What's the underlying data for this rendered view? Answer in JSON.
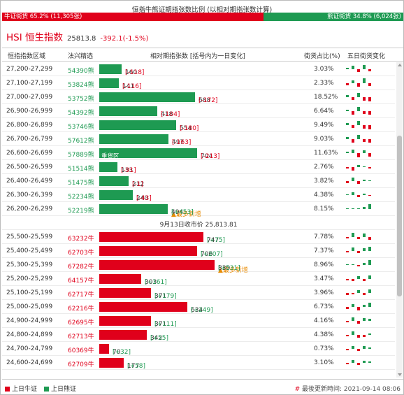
{
  "title": "恒指牛熊证期指张数比例 (以相对期指张数计算)",
  "ratio": {
    "bull_label": "牛证街货 65.2% (11,305张)",
    "bear_label": "熊证街货 34.8% (6,024张)",
    "bull_fraction": 0.652,
    "colors": {
      "bull": "#e0001b",
      "bear": "#1e9a52",
      "highlight": "#e88a00"
    }
  },
  "index": {
    "name": "HSI 恒生指数",
    "price": "25813.8",
    "change": "-392.1(-1.5%)"
  },
  "headers": {
    "range": "恒指指数区域",
    "code": "法兴精选",
    "contracts": "相对期指张数 [括号内为一日变化]",
    "pct": "街货占比(%)",
    "spark": "五日街货变化"
  },
  "bar_scale_max": 830,
  "rows": [
    {
      "type": "bear",
      "range": "27,200-27,299",
      "code": "54390熊",
      "value": 160,
      "value_text": "160",
      "change": "[-118]",
      "change_sign": "neg",
      "pct": "3.03%",
      "spark": [
        2,
        5,
        -4,
        6,
        -3
      ]
    },
    {
      "type": "bear",
      "range": "27,100-27,199",
      "code": "53824熊",
      "value": 141,
      "value_text": "141",
      "change": "[-116]",
      "change_sign": "neg",
      "pct": "2.33%",
      "spark": [
        -3,
        4,
        -5,
        7,
        -4
      ]
    },
    {
      "type": "bear",
      "range": "27,000-27,099",
      "code": "53752熊",
      "value": 688,
      "value_text": "688",
      "change": "[-172]",
      "change_sign": "neg",
      "pct": "18.52%",
      "spark": [
        3,
        -4,
        6,
        -5,
        -6
      ]
    },
    {
      "type": "bear",
      "range": "26,900-26,999",
      "code": "54392熊",
      "value": 418,
      "value_text": "418",
      "change": "[-104]",
      "change_sign": "neg",
      "pct": "6.64%",
      "spark": [
        2,
        -5,
        6,
        -4,
        -5
      ]
    },
    {
      "type": "bear",
      "range": "26,800-26,899",
      "code": "53746熊",
      "value": 554,
      "value_text": "554",
      "change": "[-180]",
      "change_sign": "neg",
      "pct": "9.49%",
      "spark": [
        3,
        -4,
        6,
        -5,
        -6
      ]
    },
    {
      "type": "bear",
      "range": "26,700-26,799",
      "code": "57612熊",
      "value": 497,
      "value_text": "497",
      "change": "[-163]",
      "change_sign": "neg",
      "pct": "9.03%",
      "spark": [
        3,
        -5,
        6,
        -4,
        -5
      ]
    },
    {
      "type": "bear",
      "range": "26,600-26,699",
      "code": "57889熊",
      "value": 704,
      "value_text": "704",
      "change": "[-213]",
      "change_sign": "neg",
      "pct": "11.63%",
      "bar_label": "重货区",
      "spark": [
        2,
        5,
        -6,
        4,
        -5
      ]
    },
    {
      "type": "bear",
      "range": "26,500-26,599",
      "code": "51514熊",
      "value": 133,
      "value_text": "133",
      "change": "[-91]",
      "change_sign": "neg",
      "pct": "2.76%",
      "spark": [
        -2,
        -5,
        3,
        1,
        -2
      ]
    },
    {
      "type": "bear",
      "range": "26,400-26,499",
      "code": "51475熊",
      "value": 212,
      "value_text": "212",
      "change": "[-1]",
      "change_sign": "neg",
      "pct": "3.82%",
      "spark": [
        -3,
        5,
        -4,
        2,
        0
      ]
    },
    {
      "type": "bear",
      "range": "26,300-26,399",
      "code": "52234熊",
      "value": 240,
      "value_text": "240",
      "change": "[-43]",
      "change_sign": "neg",
      "pct": "4.38%",
      "spark": [
        0,
        4,
        -3,
        2,
        -1
      ]
    },
    {
      "type": "bear",
      "range": "26,200-26,299",
      "code": "52219熊",
      "value": 494,
      "value_text": "494",
      "change": "[+453]",
      "change_sign": "pos",
      "pct": "8.15%",
      "tag": "▲最多新增",
      "spark": [
        0,
        0,
        1,
        3,
        7
      ]
    },
    {
      "type": "divider",
      "text": "9月13日收市价 25,813.81"
    },
    {
      "type": "bull",
      "range": "25,500-25,599",
      "code": "63232牛",
      "value": 747,
      "value_text": "747",
      "change": "[+75]",
      "change_sign": "pos",
      "pct": "7.78%",
      "spark": [
        -2,
        6,
        -3,
        5,
        -4
      ]
    },
    {
      "type": "bull",
      "range": "25,400-25,499",
      "code": "62703牛",
      "value": 706,
      "value_text": "706",
      "change": "[+207]",
      "change_sign": "pos",
      "pct": "7.37%",
      "spark": [
        -2,
        5,
        -3,
        4,
        6
      ]
    },
    {
      "type": "bull",
      "range": "25,300-25,399",
      "code": "67282牛",
      "value": 830,
      "value_text": "830",
      "change": "[+531]",
      "change_sign": "pos",
      "pct": "8.96%",
      "tag": "▲最多新增",
      "spark": [
        0,
        1,
        -2,
        3,
        7
      ]
    },
    {
      "type": "bull",
      "range": "25,200-25,299",
      "code": "64157牛",
      "value": 303,
      "value_text": "303",
      "change": "[+161]",
      "change_sign": "pos",
      "pct": "3.47%",
      "spark": [
        -2,
        -3,
        4,
        -3,
        5
      ]
    },
    {
      "type": "bull",
      "range": "25,100-25,199",
      "code": "62717牛",
      "value": 371,
      "value_text": "371",
      "change": "[+179]",
      "change_sign": "pos",
      "pct": "3.96%",
      "spark": [
        -3,
        -2,
        4,
        -3,
        5
      ]
    },
    {
      "type": "bull",
      "range": "25,000-25,099",
      "code": "62216牛",
      "value": 634,
      "value_text": "634",
      "change": "[+249]",
      "change_sign": "pos",
      "pct": "6.73%",
      "spark": [
        -3,
        4,
        -5,
        3,
        6
      ]
    },
    {
      "type": "bull",
      "range": "24,900-24,999",
      "code": "62695牛",
      "value": 371,
      "value_text": "371",
      "change": "[+111]",
      "change_sign": "pos",
      "pct": "4.16%",
      "spark": [
        -2,
        5,
        -4,
        4,
        3
      ]
    },
    {
      "type": "bull",
      "range": "24,800-24,899",
      "code": "62713牛",
      "value": 342,
      "value_text": "342",
      "change": "[+55]",
      "change_sign": "pos",
      "pct": "4.38%",
      "spark": [
        -2,
        5,
        -4,
        -3,
        2
      ]
    },
    {
      "type": "bull",
      "range": "24,700-24,799",
      "code": "60369牛",
      "value": 70,
      "value_text": "70",
      "change": "[+32]",
      "change_sign": "pos",
      "pct": "0.73%",
      "spark": [
        -2,
        4,
        -3,
        4,
        2
      ]
    },
    {
      "type": "bull",
      "range": "24,600-24,699",
      "code": "62709牛",
      "value": 177,
      "value_text": "177",
      "change": "[+58]",
      "change_sign": "pos",
      "pct": "3.10%",
      "spark": [
        -2,
        4,
        -3,
        3,
        2
      ]
    }
  ],
  "legend": {
    "bull": "上日牛证",
    "bear": "上日熊证"
  },
  "updated": {
    "hash": "#",
    "label": "最後更新時间: 2021-09-14 08:06"
  }
}
